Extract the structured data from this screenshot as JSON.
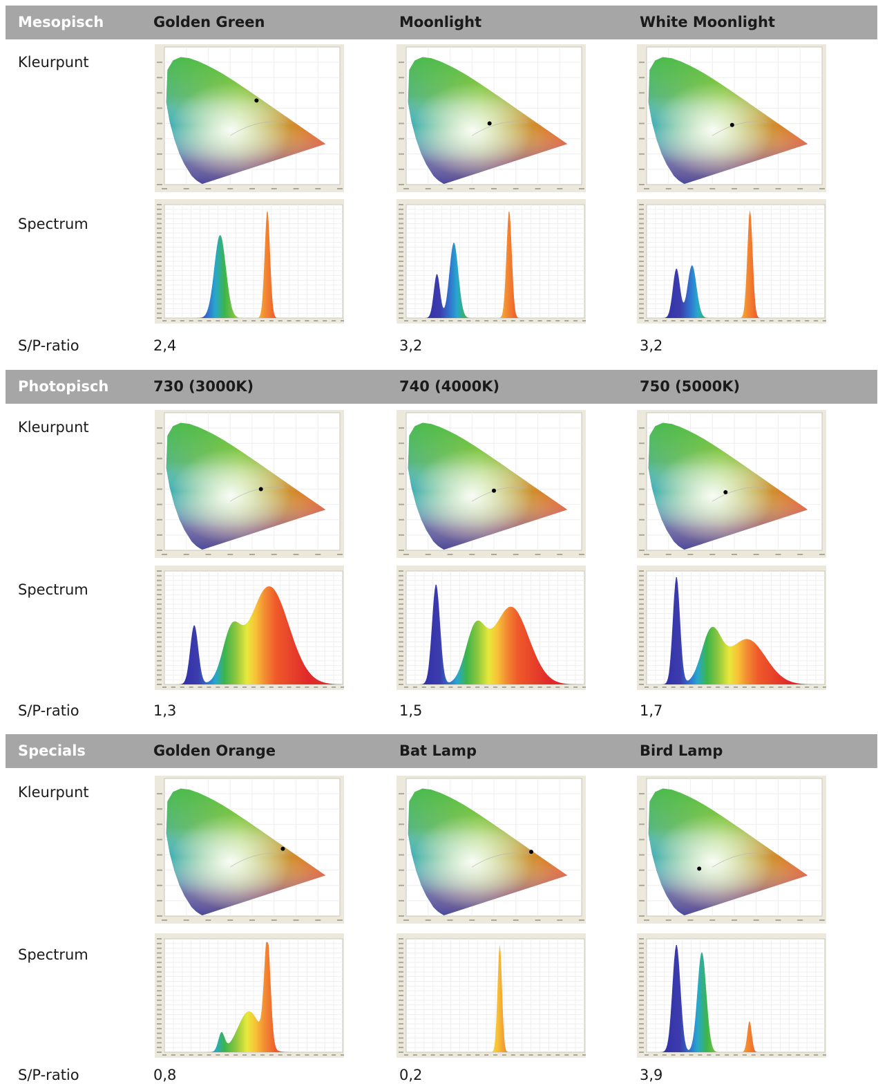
{
  "sections": [
    {
      "category": "Mesopisch",
      "headers": [
        "Golden Green",
        "Moonlight",
        "White Moonlight"
      ],
      "row_labels": {
        "color_point": "Kleurpunt",
        "spectrum": "Spectrum",
        "sp_ratio": "S/P-ratio"
      },
      "sp_values": [
        "2,4",
        "3,2",
        "3,2"
      ]
    },
    {
      "category": "Photopisch",
      "headers": [
        "730 (3000K)",
        "740 (4000K)",
        "750 (5000K)"
      ],
      "row_labels": {
        "color_point": "Kleurpunt",
        "spectrum": "Spectrum",
        "sp_ratio": "S/P-ratio"
      },
      "sp_values": [
        "1,3",
        "1,5",
        "1,7"
      ]
    },
    {
      "category": "Specials",
      "headers": [
        "Golden Orange",
        "Bat Lamp",
        "Bird Lamp"
      ],
      "row_labels": {
        "color_point": "Kleurpunt",
        "spectrum": "Spectrum",
        "sp_ratio": "S/P-ratio"
      },
      "sp_values": [
        "0,8",
        "0,2",
        "3,9"
      ]
    }
  ],
  "chart_data": [
    {
      "type": "scatter",
      "chart": "chromaticity",
      "lamp": "Golden Green",
      "x": 0.42,
      "y": 0.55
    },
    {
      "type": "scatter",
      "chart": "chromaticity",
      "lamp": "Moonlight",
      "x": 0.38,
      "y": 0.4
    },
    {
      "type": "scatter",
      "chart": "chromaticity",
      "lamp": "White Moonlight",
      "x": 0.39,
      "y": 0.39
    },
    {
      "type": "scatter",
      "chart": "chromaticity",
      "lamp": "730 (3000K)",
      "x": 0.44,
      "y": 0.4
    },
    {
      "type": "scatter",
      "chart": "chromaticity",
      "lamp": "740 (4000K)",
      "x": 0.4,
      "y": 0.39
    },
    {
      "type": "scatter",
      "chart": "chromaticity",
      "lamp": "750 (5000K)",
      "x": 0.36,
      "y": 0.38
    },
    {
      "type": "scatter",
      "chart": "chromaticity",
      "lamp": "Golden Orange",
      "x": 0.54,
      "y": 0.44
    },
    {
      "type": "scatter",
      "chart": "chromaticity",
      "lamp": "Bat Lamp",
      "x": 0.57,
      "y": 0.42
    },
    {
      "type": "scatter",
      "chart": "chromaticity",
      "lamp": "Bird Lamp",
      "x": 0.24,
      "y": 0.31
    },
    {
      "type": "area",
      "chart": "spectrum",
      "lamp": "Golden Green",
      "xlim": [
        380,
        780
      ],
      "peaks": [
        {
          "wl": 505,
          "h": 0.77,
          "w": 13
        },
        {
          "wl": 611,
          "h": 1.0,
          "w": 6
        }
      ]
    },
    {
      "type": "area",
      "chart": "spectrum",
      "lamp": "Moonlight",
      "xlim": [
        380,
        780
      ],
      "peaks": [
        {
          "wl": 449,
          "h": 0.41,
          "w": 7
        },
        {
          "wl": 487,
          "h": 0.7,
          "w": 10
        },
        {
          "wl": 611,
          "h": 1.0,
          "w": 6
        }
      ]
    },
    {
      "type": "area",
      "chart": "spectrum",
      "lamp": "White Moonlight",
      "xlim": [
        380,
        780
      ],
      "peaks": [
        {
          "wl": 447,
          "h": 0.46,
          "w": 8
        },
        {
          "wl": 482,
          "h": 0.49,
          "w": 10
        },
        {
          "wl": 612,
          "h": 1.0,
          "w": 6
        }
      ]
    },
    {
      "type": "area",
      "chart": "spectrum",
      "lamp": "730 (3000K)",
      "xlim": [
        380,
        780
      ],
      "peaks": [
        {
          "wl": 447,
          "h": 0.55,
          "w": 9
        },
        {
          "wl": 530,
          "h": 0.42,
          "w": 20
        },
        {
          "wl": 615,
          "h": 0.91,
          "w": 44
        }
      ]
    },
    {
      "type": "area",
      "chart": "spectrum",
      "lamp": "740 (4000K)",
      "xlim": [
        380,
        780
      ],
      "peaks": [
        {
          "wl": 447,
          "h": 0.93,
          "w": 9
        },
        {
          "wl": 535,
          "h": 0.48,
          "w": 22
        },
        {
          "wl": 615,
          "h": 0.72,
          "w": 40
        }
      ]
    },
    {
      "type": "area",
      "chart": "spectrum",
      "lamp": "750 (5000K)",
      "xlim": [
        380,
        780
      ],
      "peaks": [
        {
          "wl": 447,
          "h": 1.0,
          "w": 8
        },
        {
          "wl": 525,
          "h": 0.46,
          "w": 22
        },
        {
          "wl": 605,
          "h": 0.42,
          "w": 42
        }
      ]
    },
    {
      "type": "area",
      "chart": "spectrum",
      "lamp": "Golden Orange",
      "xlim": [
        380,
        780
      ],
      "peaks": [
        {
          "wl": 508,
          "h": 0.17,
          "w": 7
        },
        {
          "wl": 570,
          "h": 0.38,
          "w": 25
        },
        {
          "wl": 611,
          "h": 1.0,
          "w": 7
        }
      ]
    },
    {
      "type": "area",
      "chart": "spectrum",
      "lamp": "Bat Lamp",
      "xlim": [
        380,
        780
      ],
      "peaks": [
        {
          "wl": 590,
          "h": 1.0,
          "w": 5
        }
      ]
    },
    {
      "type": "area",
      "chart": "spectrum",
      "lamp": "Bird Lamp",
      "xlim": [
        380,
        780
      ],
      "peaks": [
        {
          "wl": 447,
          "h": 1.0,
          "w": 9
        },
        {
          "wl": 504,
          "h": 0.93,
          "w": 10
        },
        {
          "wl": 611,
          "h": 0.29,
          "w": 5
        }
      ]
    }
  ]
}
